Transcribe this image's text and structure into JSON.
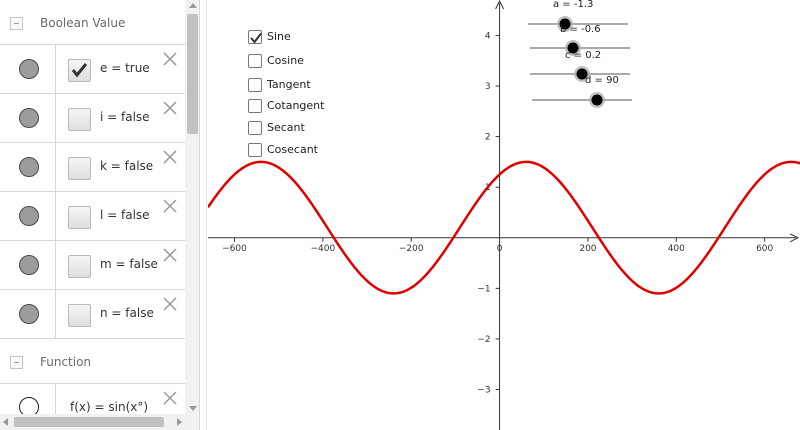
{
  "algebra": {
    "groups": [
      {
        "label": "Boolean Value"
      },
      {
        "label": "Function"
      }
    ],
    "rows": [
      {
        "text": "e = true",
        "checked": true
      },
      {
        "text": "i = false",
        "checked": false
      },
      {
        "text": "k = false",
        "checked": false
      },
      {
        "text": "l = false",
        "checked": false
      },
      {
        "text": "m = false",
        "checked": false
      },
      {
        "text": "n = false",
        "checked": false
      }
    ],
    "function_row": {
      "text": "f(x) = sin(x°)"
    }
  },
  "trig_checkboxes": [
    {
      "label": "Sine",
      "checked": true
    },
    {
      "label": "Cosine",
      "checked": false
    },
    {
      "label": "Tangent",
      "checked": false
    },
    {
      "label": "Cotangent",
      "checked": false
    },
    {
      "label": "Secant",
      "checked": false
    },
    {
      "label": "Cosecant",
      "checked": false
    }
  ],
  "sliders": [
    {
      "label": "a = -1.3"
    },
    {
      "label": "b = -0.6"
    },
    {
      "label": "c = 0.2"
    },
    {
      "label": "d = 90"
    }
  ],
  "colors": {
    "curve": "#e00000",
    "axis": "#333333"
  },
  "chart_data": {
    "type": "line",
    "title": "",
    "xlabel": "",
    "ylabel": "",
    "xlim": [
      -660,
      680
    ],
    "ylim": [
      -3.8,
      4.7
    ],
    "x_ticks": [
      -600,
      -400,
      -200,
      0,
      200,
      400,
      600
    ],
    "x_tick_labels": [
      "−600",
      "−400",
      "−200",
      "0",
      "200",
      "400",
      "600"
    ],
    "y_ticks": [
      -3,
      -2,
      -1,
      1,
      2,
      3,
      4
    ],
    "y_tick_labels": [
      "−3",
      "−2",
      "−1",
      "1",
      "2",
      "3",
      "4"
    ],
    "series": [
      {
        "function": "f(x) = sin(x°)",
        "a": -1.3,
        "b": -0.6,
        "c": 0.2,
        "d": 90
      }
    ]
  }
}
